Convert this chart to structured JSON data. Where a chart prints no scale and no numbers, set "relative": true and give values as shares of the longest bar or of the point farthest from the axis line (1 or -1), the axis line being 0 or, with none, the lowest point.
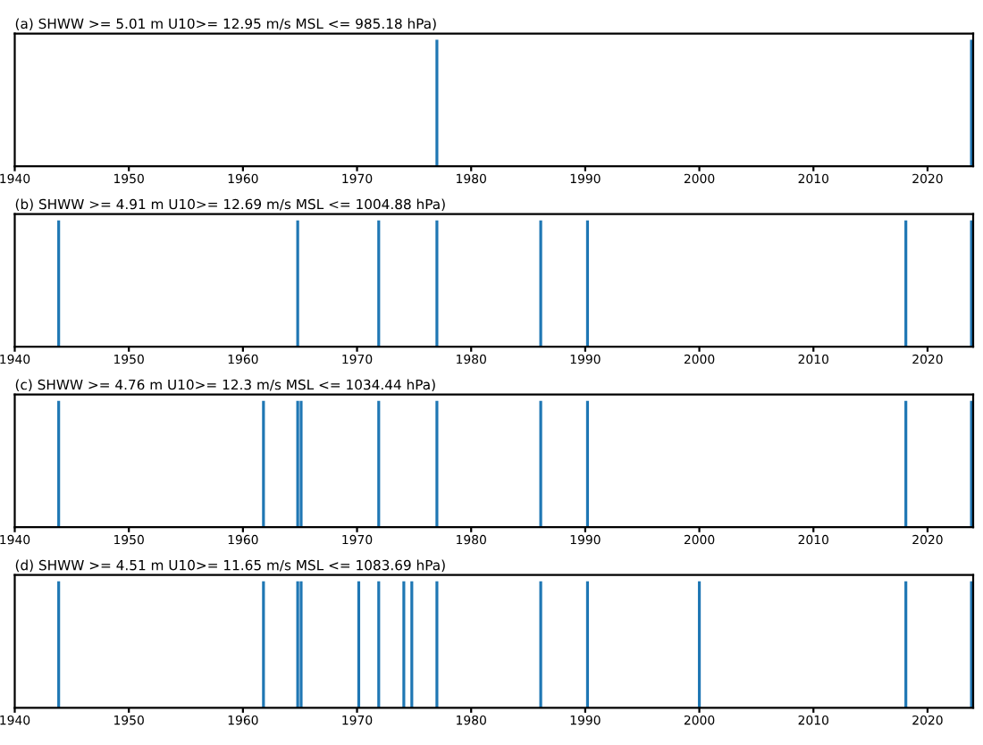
{
  "chart_data": [
    {
      "type": "bar",
      "title": "(a) SHWW >= 5.01 m U10>= 12.95 m/s MSL <= 985.18 hPa)",
      "relative": true,
      "x": [
        1977.0,
        2023.85
      ],
      "values": [
        1,
        1
      ],
      "color": "#1f77b4",
      "xlim": [
        1940,
        2024
      ],
      "xticks": [
        1940,
        1950,
        1960,
        1970,
        1980,
        1990,
        2000,
        2010,
        2020
      ],
      "tick_labels": "x",
      "grid": false,
      "legend": false
    },
    {
      "type": "bar",
      "title": "(b) SHWW >= 4.91 m U10>= 12.69 m/s MSL <= 1004.88 hPa)",
      "relative": true,
      "x": [
        1943.85,
        1964.8,
        1971.9,
        1977.0,
        1986.1,
        1990.2,
        2018.1,
        2023.85
      ],
      "values": [
        1,
        1,
        1,
        1,
        1,
        1,
        1,
        1
      ],
      "color": "#1f77b4",
      "xlim": [
        1940,
        2024
      ],
      "xticks": [
        1940,
        1950,
        1960,
        1970,
        1980,
        1990,
        2000,
        2010,
        2020
      ],
      "tick_labels": "x",
      "grid": false,
      "legend": false
    },
    {
      "type": "bar",
      "title": "(c) SHWW >= 4.76 m U10>= 12.3 m/s MSL <= 1034.44 hPa)",
      "relative": true,
      "x": [
        1943.85,
        1961.8,
        1964.8,
        1965.1,
        1971.9,
        1977.0,
        1986.1,
        1990.2,
        2018.1,
        2023.85
      ],
      "values": [
        1,
        1,
        1,
        1,
        1,
        1,
        1,
        1,
        1,
        1
      ],
      "color": "#1f77b4",
      "xlim": [
        1940,
        2024
      ],
      "xticks": [
        1940,
        1950,
        1960,
        1970,
        1980,
        1990,
        2000,
        2010,
        2020
      ],
      "tick_labels": "x",
      "grid": false,
      "legend": false
    },
    {
      "type": "bar",
      "title": "(d) SHWW >= 4.51 m U10>= 11.65 m/s MSL <= 1083.69 hPa)",
      "relative": true,
      "x": [
        1943.85,
        1961.8,
        1964.8,
        1965.1,
        1970.15,
        1971.9,
        1974.1,
        1974.8,
        1977.0,
        1986.1,
        1990.2,
        2000.0,
        2018.1,
        2023.85
      ],
      "values": [
        1,
        1,
        1,
        1,
        1,
        1,
        1,
        1,
        1,
        1,
        1,
        1,
        1,
        1
      ],
      "color": "#1f77b4",
      "xlim": [
        1940,
        2024
      ],
      "xticks": [
        1940,
        1950,
        1960,
        1970,
        1980,
        1990,
        2000,
        2010,
        2020
      ],
      "tick_labels": "x",
      "grid": false,
      "legend": false
    }
  ]
}
